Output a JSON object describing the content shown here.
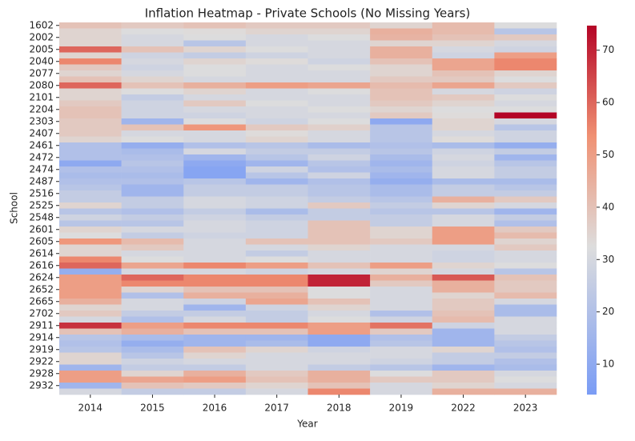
{
  "chart_data": {
    "type": "heatmap",
    "title": "Inflation Heatmap - Private Schools (No Missing Years)",
    "x_label": "Year",
    "y_label": "School",
    "x_categories": [
      "2014",
      "2015",
      "2016",
      "2017",
      "2018",
      "2019",
      "2022",
      "2023"
    ],
    "y_categories": [
      "1602",
      null,
      "2002",
      null,
      "2005",
      null,
      "2040",
      null,
      "2077",
      null,
      "2080",
      null,
      "2101",
      null,
      "2204",
      null,
      "2303",
      null,
      "2407",
      null,
      "2461",
      null,
      "2472",
      null,
      "2474",
      null,
      "2487",
      null,
      "2516",
      null,
      "2525",
      null,
      "2548",
      null,
      "2601",
      null,
      "2605",
      null,
      "2614",
      null,
      "2616",
      null,
      "2624",
      null,
      "2652",
      null,
      "2665",
      null,
      "2702",
      null,
      "2911",
      null,
      "2914",
      null,
      "2919",
      null,
      "2922",
      null,
      "2928",
      null,
      "2932",
      null
    ],
    "values": [
      [
        40,
        38,
        40,
        38,
        38,
        35,
        42,
        32
      ],
      [
        35,
        32,
        33,
        35,
        35,
        45,
        42,
        22
      ],
      [
        35,
        30,
        32,
        30,
        32,
        44,
        40,
        38
      ],
      [
        35,
        30,
        22,
        30,
        30,
        35,
        35,
        30
      ],
      [
        60,
        40,
        35,
        32,
        30,
        45,
        30,
        28
      ],
      [
        35,
        28,
        25,
        28,
        30,
        45,
        28,
        50
      ],
      [
        55,
        30,
        35,
        33,
        28,
        40,
        48,
        55
      ],
      [
        38,
        28,
        32,
        30,
        32,
        35,
        48,
        55
      ],
      [
        35,
        30,
        32,
        30,
        30,
        35,
        40,
        35
      ],
      [
        40,
        35,
        30,
        30,
        30,
        38,
        38,
        32
      ],
      [
        60,
        40,
        45,
        50,
        48,
        42,
        48,
        38
      ],
      [
        35,
        32,
        35,
        30,
        32,
        40,
        30,
        28
      ],
      [
        35,
        25,
        30,
        30,
        30,
        40,
        38,
        32
      ],
      [
        38,
        28,
        38,
        32,
        30,
        38,
        35,
        30
      ],
      [
        40,
        28,
        30,
        30,
        32,
        35,
        32,
        32
      ],
      [
        40,
        28,
        28,
        30,
        30,
        38,
        33,
        75
      ],
      [
        38,
        15,
        32,
        28,
        32,
        10,
        35,
        30
      ],
      [
        38,
        40,
        52,
        38,
        36,
        22,
        35,
        22
      ],
      [
        38,
        30,
        30,
        33,
        30,
        22,
        30,
        28
      ],
      [
        35,
        32,
        30,
        35,
        30,
        22,
        33,
        28
      ],
      [
        20,
        12,
        20,
        22,
        18,
        20,
        18,
        12
      ],
      [
        20,
        18,
        30,
        25,
        25,
        22,
        28,
        25
      ],
      [
        20,
        20,
        15,
        22,
        28,
        18,
        30,
        15
      ],
      [
        10,
        22,
        10,
        15,
        22,
        15,
        28,
        22
      ],
      [
        20,
        20,
        8,
        28,
        20,
        18,
        30,
        25
      ],
      [
        18,
        18,
        8,
        22,
        28,
        15,
        30,
        25
      ],
      [
        20,
        20,
        22,
        15,
        20,
        12,
        18,
        18
      ],
      [
        22,
        15,
        25,
        25,
        22,
        18,
        25,
        22
      ],
      [
        25,
        15,
        25,
        25,
        22,
        18,
        25,
        25
      ],
      [
        25,
        25,
        30,
        28,
        25,
        22,
        45,
        38
      ],
      [
        35,
        25,
        30,
        28,
        38,
        25,
        35,
        30
      ],
      [
        22,
        20,
        25,
        18,
        25,
        22,
        22,
        15
      ],
      [
        28,
        25,
        28,
        25,
        25,
        25,
        30,
        25
      ],
      [
        22,
        22,
        30,
        28,
        40,
        25,
        30,
        20
      ],
      [
        35,
        30,
        30,
        28,
        40,
        35,
        50,
        38
      ],
      [
        32,
        25,
        28,
        28,
        40,
        35,
        50,
        42
      ],
      [
        52,
        42,
        30,
        40,
        40,
        38,
        50,
        35
      ],
      [
        35,
        38,
        30,
        30,
        35,
        30,
        30,
        38
      ],
      [
        35,
        30,
        30,
        25,
        30,
        30,
        28,
        30
      ],
      [
        55,
        32,
        30,
        32,
        30,
        30,
        28,
        30
      ],
      [
        60,
        48,
        55,
        50,
        40,
        50,
        35,
        32
      ],
      [
        12,
        30,
        30,
        28,
        30,
        35,
        30,
        22
      ],
      [
        50,
        60,
        55,
        55,
        70,
        45,
        62,
        40
      ],
      [
        50,
        55,
        55,
        55,
        70,
        38,
        45,
        38
      ],
      [
        50,
        35,
        40,
        40,
        32,
        30,
        45,
        38
      ],
      [
        50,
        20,
        45,
        45,
        32,
        30,
        35,
        42
      ],
      [
        45,
        30,
        28,
        48,
        40,
        30,
        38,
        30
      ],
      [
        35,
        30,
        15,
        28,
        35,
        30,
        38,
        18
      ],
      [
        38,
        25,
        25,
        25,
        30,
        20,
        40,
        18
      ],
      [
        30,
        20,
        30,
        25,
        32,
        28,
        42,
        30
      ],
      [
        68,
        50,
        55,
        55,
        50,
        58,
        28,
        30
      ],
      [
        40,
        45,
        40,
        40,
        50,
        38,
        15,
        30
      ],
      [
        22,
        18,
        15,
        15,
        10,
        20,
        15,
        25
      ],
      [
        20,
        12,
        15,
        18,
        10,
        22,
        15,
        22
      ],
      [
        22,
        18,
        40,
        35,
        28,
        30,
        35,
        20
      ],
      [
        35,
        22,
        35,
        30,
        30,
        30,
        25,
        25
      ],
      [
        35,
        28,
        30,
        30,
        30,
        28,
        25,
        20
      ],
      [
        15,
        25,
        25,
        30,
        25,
        22,
        15,
        18
      ],
      [
        50,
        35,
        45,
        38,
        45,
        32,
        38,
        30
      ],
      [
        50,
        48,
        50,
        40,
        45,
        38,
        38,
        32
      ],
      [
        15,
        40,
        38,
        35,
        40,
        30,
        35,
        30
      ],
      [
        30,
        25,
        25,
        30,
        55,
        30,
        45,
        45
      ]
    ],
    "zlim": [
      4.2,
      74.7
    ],
    "colorbar_ticks": [
      10,
      20,
      30,
      40,
      50,
      60,
      70
    ]
  }
}
